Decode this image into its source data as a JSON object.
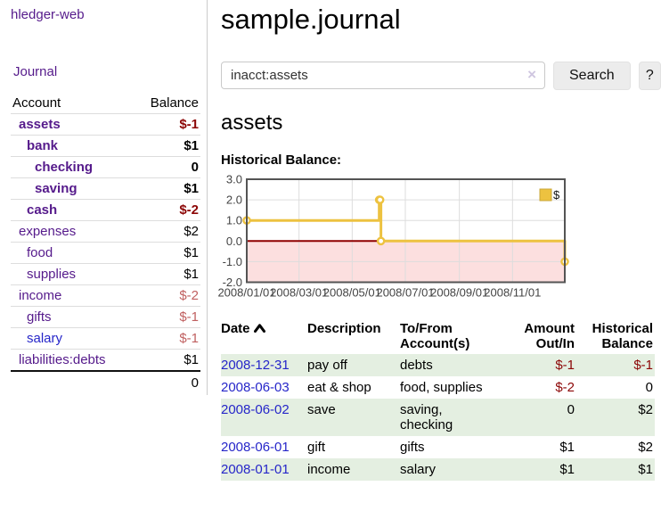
{
  "sidebar": {
    "brand": "hledger-web",
    "journal_link": "Journal",
    "accounts_table": {
      "headers": {
        "account": "Account",
        "balance": "Balance"
      },
      "rows": [
        {
          "name": "assets",
          "balance": "$-1"
        },
        {
          "name": "bank",
          "balance": "$1"
        },
        {
          "name": "checking",
          "balance": "0"
        },
        {
          "name": "saving",
          "balance": "$1"
        },
        {
          "name": "cash",
          "balance": "$-2"
        },
        {
          "name": "expenses",
          "balance": "$2"
        },
        {
          "name": "food",
          "balance": "$1"
        },
        {
          "name": "supplies",
          "balance": "$1"
        },
        {
          "name": "income",
          "balance": "$-2"
        },
        {
          "name": "gifts",
          "balance": "$-1"
        },
        {
          "name": "salary",
          "balance": "$-1"
        },
        {
          "name": "liabilities:debts",
          "balance": "$1"
        }
      ],
      "total": "0"
    }
  },
  "header": {
    "title": "sample.journal"
  },
  "search": {
    "query": "inacct:assets",
    "clear_icon": "×",
    "search_label": "Search",
    "help_label": "?"
  },
  "account_page": {
    "heading": "assets",
    "chart_label": "Historical Balance:"
  },
  "chart_data": {
    "type": "line",
    "interpolation": "step-after",
    "series": [
      {
        "name": "$",
        "color": "#edc240",
        "points": [
          [
            "2008-01-01",
            1
          ],
          [
            "2008-06-01",
            2
          ],
          [
            "2008-06-02",
            2
          ],
          [
            "2008-06-03",
            0
          ],
          [
            "2008-12-31",
            -1
          ]
        ]
      }
    ],
    "xlim": [
      "2008-01-01",
      "2008-12-31"
    ],
    "ylim": [
      -2,
      3
    ],
    "x_ticks": [
      "2008/01/01",
      "2008/03/01",
      "2008/05/01",
      "2008/07/01",
      "2008/09/01",
      "2008/11/01"
    ],
    "y_ticks": [
      "3.0",
      "2.0",
      "1.0",
      "0.0",
      "-1.0",
      "-2.0"
    ],
    "grid": true,
    "legend_position": "top-right",
    "negative_region_color": "#fcdfdf",
    "zero_line_color": "#8f0000",
    "border_color": "#545454",
    "grid_color": "#dddddd",
    "tick_label_color": "#444444"
  },
  "transactions": {
    "headers": {
      "date": "Date",
      "description": "Description",
      "accounts": "To/From Account(s)",
      "amount": "Amount Out/In",
      "balance": "Historical Balance"
    },
    "rows": [
      {
        "date": "2008-12-31",
        "description": "pay off",
        "accounts": "debts",
        "amount": "$-1",
        "balance": "$-1"
      },
      {
        "date": "2008-06-03",
        "description": "eat & shop",
        "accounts": "food, supplies",
        "amount": "$-2",
        "balance": "0"
      },
      {
        "date": "2008-06-02",
        "description": "save",
        "accounts": "saving, checking",
        "amount": "0",
        "balance": "$2"
      },
      {
        "date": "2008-06-01",
        "description": "gift",
        "accounts": "gifts",
        "amount": "$1",
        "balance": "$2"
      },
      {
        "date": "2008-01-01",
        "description": "income",
        "accounts": "salary",
        "amount": "$1",
        "balance": "$1"
      }
    ]
  },
  "colors": {
    "link_purple": "#551a8b",
    "link_blue": "#2626c9",
    "negative_strong": "#8c0606",
    "negative_soft": "#c06060",
    "row_stripe_green": "#e4efe1",
    "series_gold": "#edc240"
  }
}
